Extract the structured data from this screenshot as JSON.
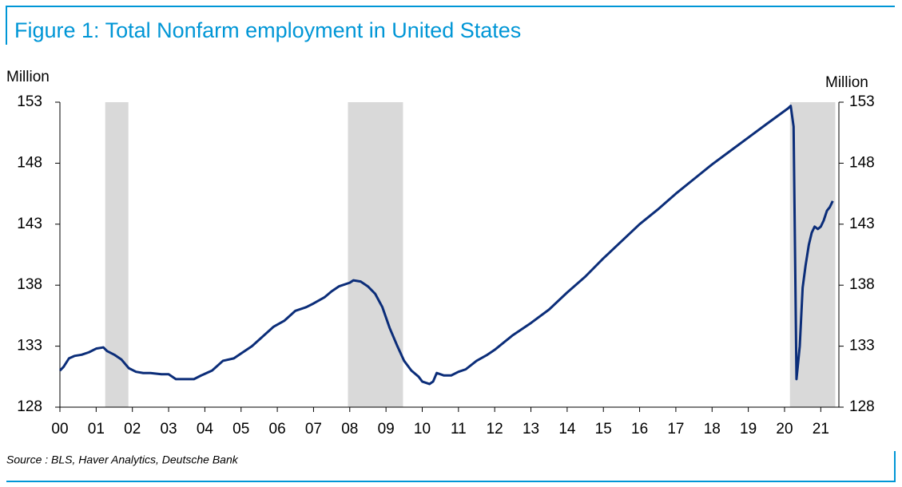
{
  "chart_data": {
    "type": "line",
    "title": "Figure 1: Total Nonfarm employment in United States",
    "y_label": "Million",
    "y2_label": "Million",
    "source": "Source : BLS, Haver Analytics, Deutsche Bank",
    "color": "#0b2d79",
    "shade_color": "#d9d9d9",
    "recessions": [
      [
        2001.25,
        2001.89
      ],
      [
        2007.95,
        2009.47
      ],
      [
        2020.15,
        2021.4
      ]
    ],
    "x": [
      2000.0,
      2000.1,
      2000.25,
      2000.4,
      2000.6,
      2000.8,
      2001.0,
      2001.2,
      2001.3,
      2001.5,
      2001.7,
      2001.9,
      2002.1,
      2002.3,
      2002.5,
      2002.8,
      2003.0,
      2003.2,
      2003.5,
      2003.7,
      2003.9,
      2004.2,
      2004.5,
      2004.8,
      2005.0,
      2005.3,
      2005.6,
      2005.9,
      2006.2,
      2006.5,
      2006.8,
      2007.0,
      2007.3,
      2007.5,
      2007.7,
      2008.0,
      2008.1,
      2008.3,
      2008.5,
      2008.7,
      2008.9,
      2009.1,
      2009.3,
      2009.5,
      2009.7,
      2009.9,
      2010.0,
      2010.2,
      2010.3,
      2010.4,
      2010.6,
      2010.8,
      2011.0,
      2011.2,
      2011.5,
      2011.8,
      2012.0,
      2012.5,
      2013.0,
      2013.5,
      2014.0,
      2014.5,
      2015.0,
      2015.5,
      2016.0,
      2016.5,
      2017.0,
      2017.5,
      2018.0,
      2018.5,
      2019.0,
      2019.5,
      2020.1,
      2020.17,
      2020.25,
      2020.33,
      2020.42,
      2020.5,
      2020.58,
      2020.67,
      2020.75,
      2020.83,
      2020.92,
      2021.0,
      2021.08,
      2021.17,
      2021.25,
      2021.33
    ],
    "values": [
      131.0,
      131.3,
      132.0,
      132.2,
      132.3,
      132.5,
      132.8,
      132.9,
      132.6,
      132.3,
      131.9,
      131.2,
      130.9,
      130.8,
      130.8,
      130.7,
      130.7,
      130.3,
      130.3,
      130.3,
      130.6,
      131.0,
      131.8,
      132.0,
      132.4,
      133.0,
      133.8,
      134.6,
      135.1,
      135.9,
      136.2,
      136.5,
      137.0,
      137.5,
      137.9,
      138.2,
      138.4,
      138.3,
      137.9,
      137.3,
      136.2,
      134.5,
      133.1,
      131.8,
      131.0,
      130.5,
      130.1,
      129.9,
      130.1,
      130.8,
      130.6,
      130.6,
      130.9,
      131.1,
      131.8,
      132.3,
      132.7,
      133.9,
      134.9,
      136.0,
      137.4,
      138.7,
      140.2,
      141.6,
      143.0,
      144.2,
      145.5,
      146.7,
      147.9,
      149.0,
      150.1,
      151.2,
      152.5,
      152.7,
      151.0,
      130.3,
      133.0,
      137.8,
      139.6,
      141.3,
      142.3,
      142.8,
      142.6,
      142.8,
      143.3,
      144.1,
      144.4,
      144.9
    ],
    "xlim": [
      2000,
      2021.5
    ],
    "xticks": [
      {
        "value": 2000,
        "label": "00"
      },
      {
        "value": 2001,
        "label": "01"
      },
      {
        "value": 2002,
        "label": "02"
      },
      {
        "value": 2003,
        "label": "03"
      },
      {
        "value": 2004,
        "label": "04"
      },
      {
        "value": 2005,
        "label": "05"
      },
      {
        "value": 2006,
        "label": "06"
      },
      {
        "value": 2007,
        "label": "07"
      },
      {
        "value": 2008,
        "label": "08"
      },
      {
        "value": 2009,
        "label": "09"
      },
      {
        "value": 2010,
        "label": "10"
      },
      {
        "value": 2011,
        "label": "11"
      },
      {
        "value": 2012,
        "label": "12"
      },
      {
        "value": 2013,
        "label": "13"
      },
      {
        "value": 2014,
        "label": "14"
      },
      {
        "value": 2015,
        "label": "15"
      },
      {
        "value": 2016,
        "label": "16"
      },
      {
        "value": 2017,
        "label": "17"
      },
      {
        "value": 2018,
        "label": "18"
      },
      {
        "value": 2019,
        "label": "19"
      },
      {
        "value": 2020,
        "label": "20"
      },
      {
        "value": 2021,
        "label": "21"
      }
    ],
    "ylim": [
      128,
      153
    ],
    "yticks": [
      128,
      133,
      138,
      143,
      148,
      153
    ],
    "y2lim": [
      128,
      153
    ],
    "y2ticks": [
      128,
      133,
      138,
      143,
      148,
      153
    ]
  }
}
